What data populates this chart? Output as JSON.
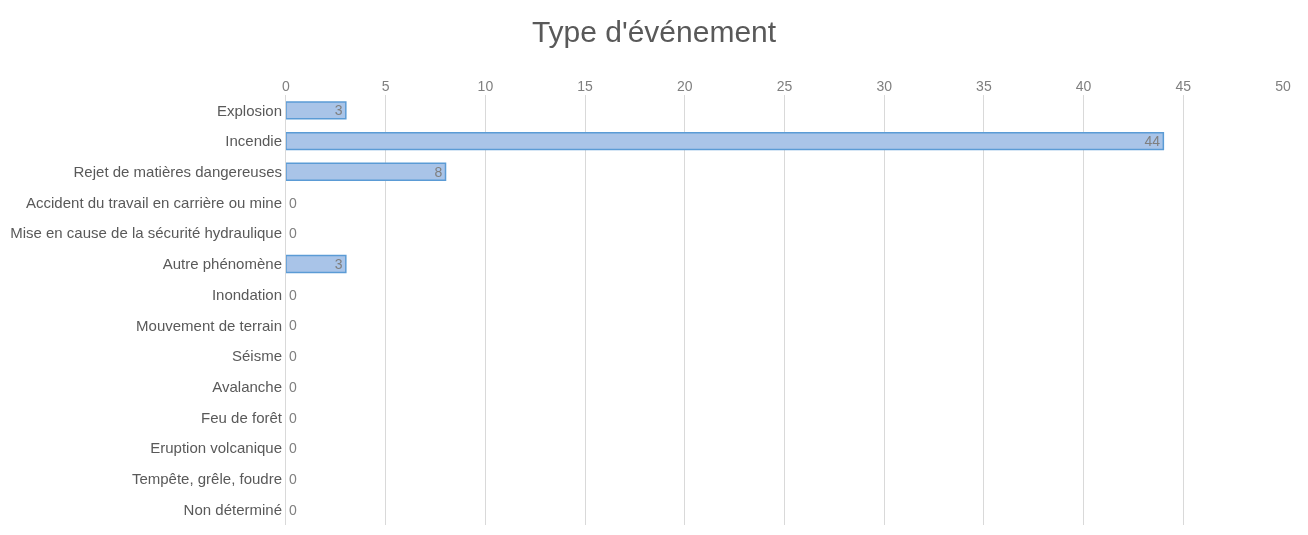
{
  "chart_data": {
    "type": "bar",
    "orientation": "horizontal",
    "title": "Type d'événement",
    "categories": [
      "Explosion",
      "Incendie",
      "Rejet de matières dangereuses",
      "Accident du travail en carrière ou mine",
      "Mise en cause de la sécurité hydraulique",
      "Autre phénomène",
      "Inondation",
      "Mouvement de terrain",
      "Séisme",
      "Avalanche",
      "Feu de forêt",
      "Eruption volcanique",
      "Tempête, grêle, foudre",
      "Non déterminé"
    ],
    "values": [
      3,
      44,
      8,
      0,
      0,
      3,
      0,
      0,
      0,
      0,
      0,
      0,
      0,
      0
    ],
    "color": "#a9c4e8",
    "xlim": [
      0,
      50
    ],
    "xticks": [
      0,
      5,
      10,
      15,
      20,
      25,
      30,
      35,
      40,
      45,
      50
    ],
    "grid": "x",
    "data_labels": true
  }
}
